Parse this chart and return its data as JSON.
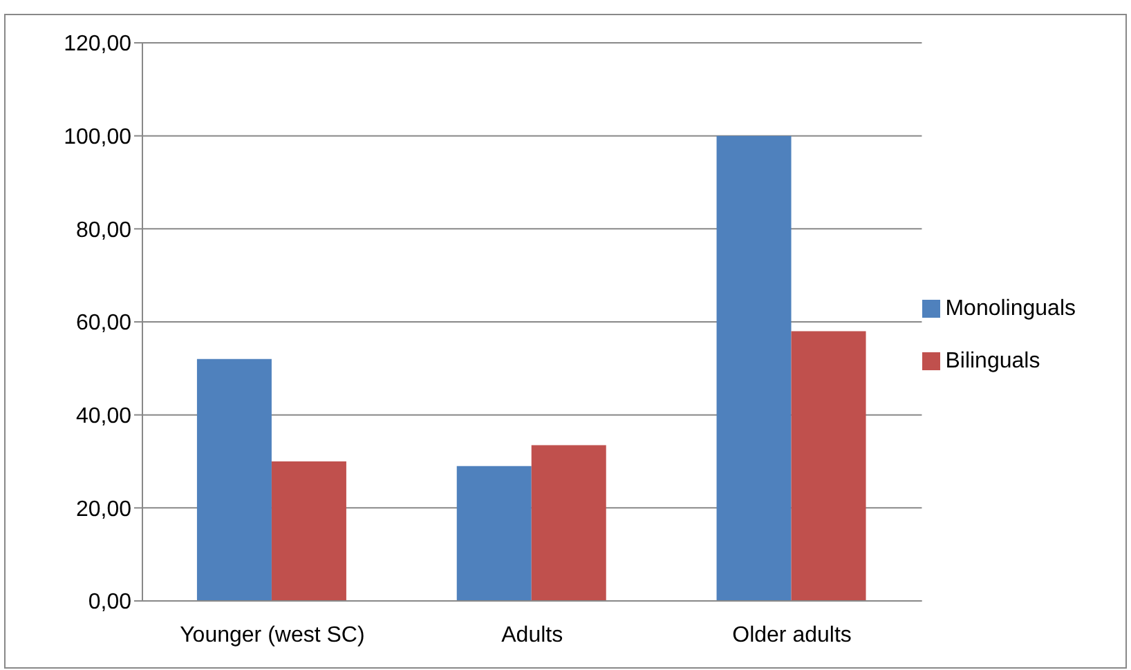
{
  "chart_data": {
    "type": "bar",
    "categories": [
      "Younger (west SC)",
      "Adults",
      "Older adults"
    ],
    "series": [
      {
        "name": "Monolinguals",
        "color": "#4f81bd",
        "values": [
          52,
          29,
          100
        ]
      },
      {
        "name": "Bilinguals",
        "color": "#c0504d",
        "values": [
          30,
          33.5,
          58
        ]
      }
    ],
    "ylim": [
      0,
      120
    ],
    "yticks": [
      {
        "value": 0,
        "label": "0,00"
      },
      {
        "value": 20,
        "label": "20,00"
      },
      {
        "value": 40,
        "label": "40,00"
      },
      {
        "value": 60,
        "label": "60,00"
      },
      {
        "value": 80,
        "label": "80,00"
      },
      {
        "value": 100,
        "label": "100,00"
      },
      {
        "value": 120,
        "label": "120,00"
      }
    ],
    "grid": "y",
    "legend": "right"
  }
}
